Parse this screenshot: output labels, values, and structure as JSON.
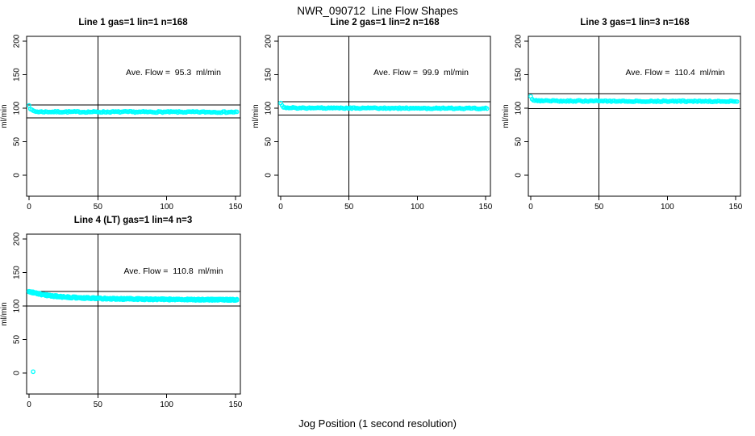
{
  "header": {
    "title": "NWR_090712  Line Flow Shapes"
  },
  "footer": {
    "xlabel": "Jog Position (1 second resolution)"
  },
  "colors": {
    "background": "#ffffff",
    "axis": "#000000",
    "points": "#00ffff"
  },
  "chart_data": [
    {
      "type": "scatter",
      "title": "Line 1 gas=1 lin=1 n=168",
      "annotation": "Ave. Flow =  95.3  ml/min",
      "ave_flow_ml_min": 95.3,
      "gas": 1,
      "lin": 1,
      "n": 168,
      "ylabel": "ml/min",
      "xlim": [
        0,
        150
      ],
      "ylim": [
        0,
        200
      ],
      "xticks": [
        0,
        50,
        100,
        150
      ],
      "yticks": [
        0,
        50,
        100,
        150,
        200
      ],
      "vline_x": 50,
      "hlines": [
        104.8,
        85.8
      ],
      "marker": "open-circle",
      "series_envelope": [
        [
          0,
          105
        ],
        [
          1,
          99.5
        ],
        [
          2,
          97
        ],
        [
          3,
          96
        ],
        [
          5,
          95
        ],
        [
          8,
          94.6
        ],
        [
          151,
          94.2
        ]
      ],
      "x_step": 1,
      "x_end": 151,
      "jitter": 0.9,
      "passes": 1,
      "outliers": []
    },
    {
      "type": "scatter",
      "title": "Line 2 gas=1 lin=2 n=168",
      "annotation": "Ave. Flow =  99.9  ml/min",
      "ave_flow_ml_min": 99.9,
      "gas": 1,
      "lin": 2,
      "n": 168,
      "ylabel": "ml/min",
      "xlim": [
        0,
        150
      ],
      "ylim": [
        0,
        200
      ],
      "xticks": [
        0,
        50,
        100,
        150
      ],
      "yticks": [
        0,
        50,
        100,
        150,
        200
      ],
      "vline_x": 50,
      "hlines": [
        109.9,
        89.9
      ],
      "marker": "open-circle",
      "series_envelope": [
        [
          0,
          107
        ],
        [
          1,
          103.5
        ],
        [
          2,
          102
        ],
        [
          4,
          101
        ],
        [
          7,
          100.4
        ],
        [
          151,
          99.7
        ]
      ],
      "x_step": 1,
      "x_end": 151,
      "jitter": 0.9,
      "passes": 1,
      "outliers": []
    },
    {
      "type": "scatter",
      "title": "Line 3 gas=1 lin=3 n=168",
      "annotation": "Ave. Flow =  110.4  ml/min",
      "ave_flow_ml_min": 110.4,
      "gas": 1,
      "lin": 3,
      "n": 168,
      "ylabel": "ml/min",
      "xlim": [
        0,
        150
      ],
      "ylim": [
        0,
        200
      ],
      "xticks": [
        0,
        50,
        100,
        150
      ],
      "yticks": [
        0,
        50,
        100,
        150,
        200
      ],
      "vline_x": 50,
      "hlines": [
        121.4,
        99.4
      ],
      "marker": "open-circle",
      "series_envelope": [
        [
          0,
          118
        ],
        [
          1,
          114
        ],
        [
          2,
          112.5
        ],
        [
          4,
          111.5
        ],
        [
          8,
          110.9
        ],
        [
          151,
          110.2
        ]
      ],
      "x_step": 1,
      "x_end": 151,
      "jitter": 0.9,
      "passes": 1,
      "outliers": []
    },
    {
      "type": "scatter",
      "title": "Line 4 (LT) gas=1 lin=4 n=3",
      "annotation": "Ave. Flow =  110.8  ml/min",
      "ave_flow_ml_min": 110.8,
      "gas": 1,
      "lin": 4,
      "n": 3,
      "ylabel": "ml/min",
      "xlim": [
        0,
        150
      ],
      "ylim": [
        0,
        200
      ],
      "xticks": [
        0,
        50,
        100,
        150
      ],
      "yticks": [
        0,
        50,
        100,
        150,
        200
      ],
      "vline_x": 50,
      "hlines": [
        121.9,
        99.7
      ],
      "marker": "open-circle",
      "series_envelope": [
        [
          0,
          122
        ],
        [
          3,
          120
        ],
        [
          6,
          118.5
        ],
        [
          10,
          117
        ],
        [
          15,
          115.5
        ],
        [
          25,
          113.5
        ],
        [
          40,
          112
        ],
        [
          60,
          110.8
        ],
        [
          90,
          110
        ],
        [
          120,
          109.6
        ],
        [
          151,
          109.3
        ]
      ],
      "x_step": 1,
      "x_end": 151,
      "jitter": 1.2,
      "passes": 3,
      "outliers": [
        [
          3,
          2
        ]
      ]
    }
  ]
}
